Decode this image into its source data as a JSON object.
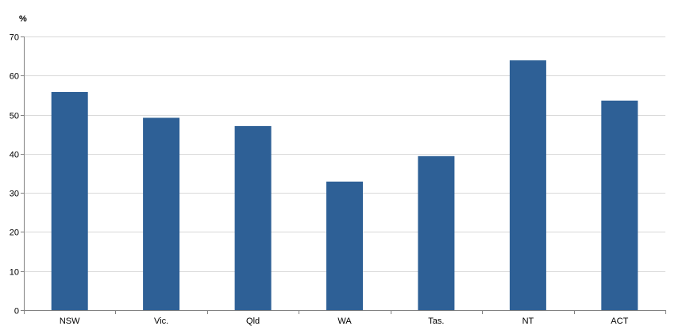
{
  "chart_data": {
    "type": "bar",
    "title": "",
    "xlabel": "",
    "ylabel": "%",
    "categories": [
      "NSW",
      "Vic.",
      "Qld",
      "WA",
      "Tas.",
      "NT",
      "ACT"
    ],
    "values": [
      55.8,
      49.2,
      47.1,
      32.9,
      39.4,
      63.9,
      53.6
    ],
    "ylim": [
      0,
      70
    ],
    "yticks": [
      0,
      10,
      20,
      30,
      40,
      50,
      60,
      70
    ],
    "grid": true,
    "legend": "none",
    "colors": {
      "bar": "#2e6096",
      "grid": "#d9d9d9",
      "axis": "#808080"
    }
  }
}
